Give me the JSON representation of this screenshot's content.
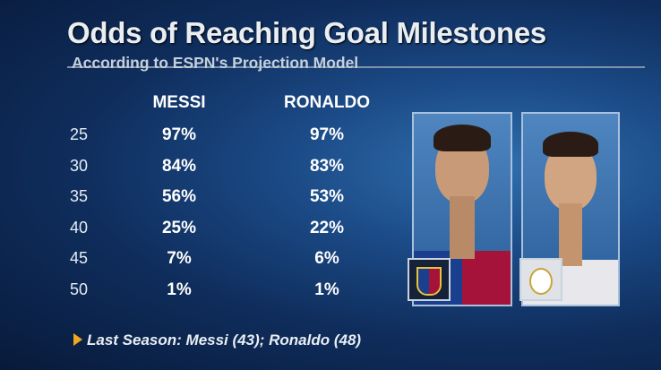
{
  "header": {
    "title": "Odds of Reaching Goal Milestones",
    "subtitle": "According to ESPN's Projection Model"
  },
  "chart_data": {
    "type": "table",
    "title": "Odds of Reaching Goal Milestones",
    "subtitle": "According to ESPN's Projection Model",
    "columns": [
      "MESSI",
      "RONALDO"
    ],
    "rows": [
      {
        "milestone": "25",
        "messi": "97%",
        "ronaldo": "97%"
      },
      {
        "milestone": "30",
        "messi": "84%",
        "ronaldo": "83%"
      },
      {
        "milestone": "35",
        "messi": "56%",
        "ronaldo": "53%"
      },
      {
        "milestone": "40",
        "messi": "25%",
        "ronaldo": "22%"
      },
      {
        "milestone": "45",
        "messi": "7%",
        "ronaldo": "6%"
      },
      {
        "milestone": "50",
        "messi": "1%",
        "ronaldo": "1%"
      }
    ]
  },
  "footer": {
    "text": "Last Season: Messi (43); Ronaldo (48)"
  },
  "colors": {
    "accent": "#f2a81d",
    "barca_blue": "#1a3f8f",
    "barca_red": "#a5123a"
  }
}
